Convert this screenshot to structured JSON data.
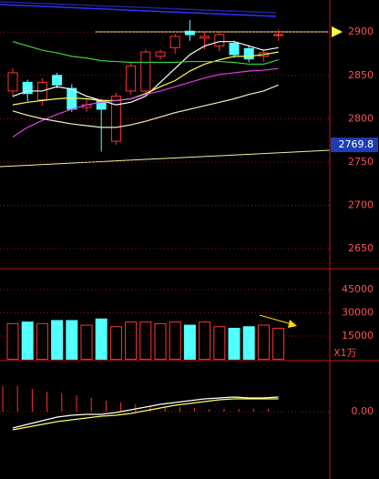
{
  "chart_data": [
    {
      "type": "candlestick",
      "open": [
        2832,
        2842,
        2822,
        2850,
        2835,
        2813,
        2821,
        2774,
        2832,
        2832,
        2872,
        2882,
        2901,
        2893,
        2884,
        2887,
        2881,
        2872,
        2896
      ],
      "high": [
        2858,
        2845,
        2847,
        2853,
        2840,
        2822,
        2823,
        2830,
        2866,
        2880,
        2880,
        2898,
        2914,
        2900,
        2900,
        2890,
        2885,
        2880,
        2903
      ],
      "low": [
        2825,
        2820,
        2815,
        2835,
        2808,
        2808,
        2762,
        2770,
        2828,
        2830,
        2868,
        2875,
        2890,
        2880,
        2878,
        2870,
        2865,
        2866,
        2890
      ],
      "close": [
        2853,
        2829,
        2842,
        2839,
        2811,
        2816,
        2811,
        2826,
        2861,
        2877,
        2877,
        2895,
        2897,
        2895,
        2897,
        2874,
        2869,
        2876,
        2897
      ],
      "up_color": "#ff3232",
      "down_color": "#54ffff",
      "series": [
        {
          "color": "#ffffff",
          "values": [
            2826,
            2832,
            2832,
            2837,
            2834,
            2826,
            2821,
            2816,
            2819,
            2826,
            2842,
            2858,
            2874,
            2884,
            2889,
            2889,
            2884,
            2879,
            2882
          ]
        },
        {
          "color": "#ffff54",
          "values": [
            2816,
            2819,
            2821,
            2823,
            2824,
            2823,
            2821,
            2821,
            2823,
            2829,
            2837,
            2844,
            2855,
            2863,
            2868,
            2872,
            2872,
            2874,
            2877
          ]
        },
        {
          "color": "#3cd23c",
          "values": [
            2889,
            2884,
            2879,
            2876,
            2872,
            2870,
            2867,
            2866,
            2865,
            2865,
            2865,
            2865,
            2866,
            2866,
            2866,
            2865,
            2863,
            2863,
            2868
          ]
        },
        {
          "color": "#e040e0",
          "values": [
            2779,
            2790,
            2798,
            2805,
            2811,
            2816,
            2819,
            2821,
            2823,
            2828,
            2832,
            2837,
            2842,
            2847,
            2851,
            2853,
            2855,
            2856,
            2858
          ]
        },
        {
          "color": "#f0f0c0",
          "values": [
            2809,
            2804,
            2800,
            2797,
            2794,
            2792,
            2790,
            2790,
            2793,
            2797,
            2802,
            2807,
            2811,
            2815,
            2819,
            2823,
            2828,
            2832,
            2839
          ]
        }
      ],
      "ylim": [
        2627,
        2937
      ],
      "yticks": [
        2650,
        2700,
        2750,
        2800,
        2850,
        2900
      ],
      "last_price": 2769.8,
      "grid": true
    },
    {
      "type": "bar",
      "values": [
        23000,
        24000,
        23000,
        25000,
        25000,
        22000,
        26000,
        21000,
        24000,
        24000,
        23000,
        24000,
        22000,
        24000,
        21000,
        20000,
        21000,
        22000,
        20000
      ],
      "ylim": [
        0,
        57900
      ],
      "yticks": [
        15000,
        30000,
        45000
      ],
      "unit_label": "X1万",
      "grid": true
    },
    {
      "type": "macd",
      "values": [
        2.8,
        2.8,
        2.5,
        2.2,
        2.0,
        1.8,
        1.5,
        1.2,
        1.0,
        0.8,
        0.6,
        0.5,
        0.5,
        0.4,
        0.3,
        0.3,
        0.3,
        0.3,
        0.3
      ],
      "bar_color": "#ff3232",
      "series": [
        {
          "color": "#ffffff",
          "values": [
            -1.8,
            -1.4,
            -1.0,
            -0.6,
            -0.4,
            -0.3,
            -0.3,
            -0.1,
            0.2,
            0.5,
            0.8,
            1.0,
            1.2,
            1.4,
            1.5,
            1.6,
            1.5,
            1.5,
            1.6
          ]
        },
        {
          "color": "#ffff54",
          "values": [
            -2.0,
            -1.7,
            -1.4,
            -1.1,
            -0.9,
            -0.7,
            -0.5,
            -0.4,
            -0.2,
            0.1,
            0.4,
            0.7,
            0.9,
            1.1,
            1.3,
            1.4,
            1.4,
            1.4,
            1.4
          ]
        }
      ],
      "ylim": [
        -7.4,
        5.6
      ],
      "yticks": [
        {
          "value": 0,
          "label": "0.00"
        }
      ],
      "grid": true
    }
  ]
}
